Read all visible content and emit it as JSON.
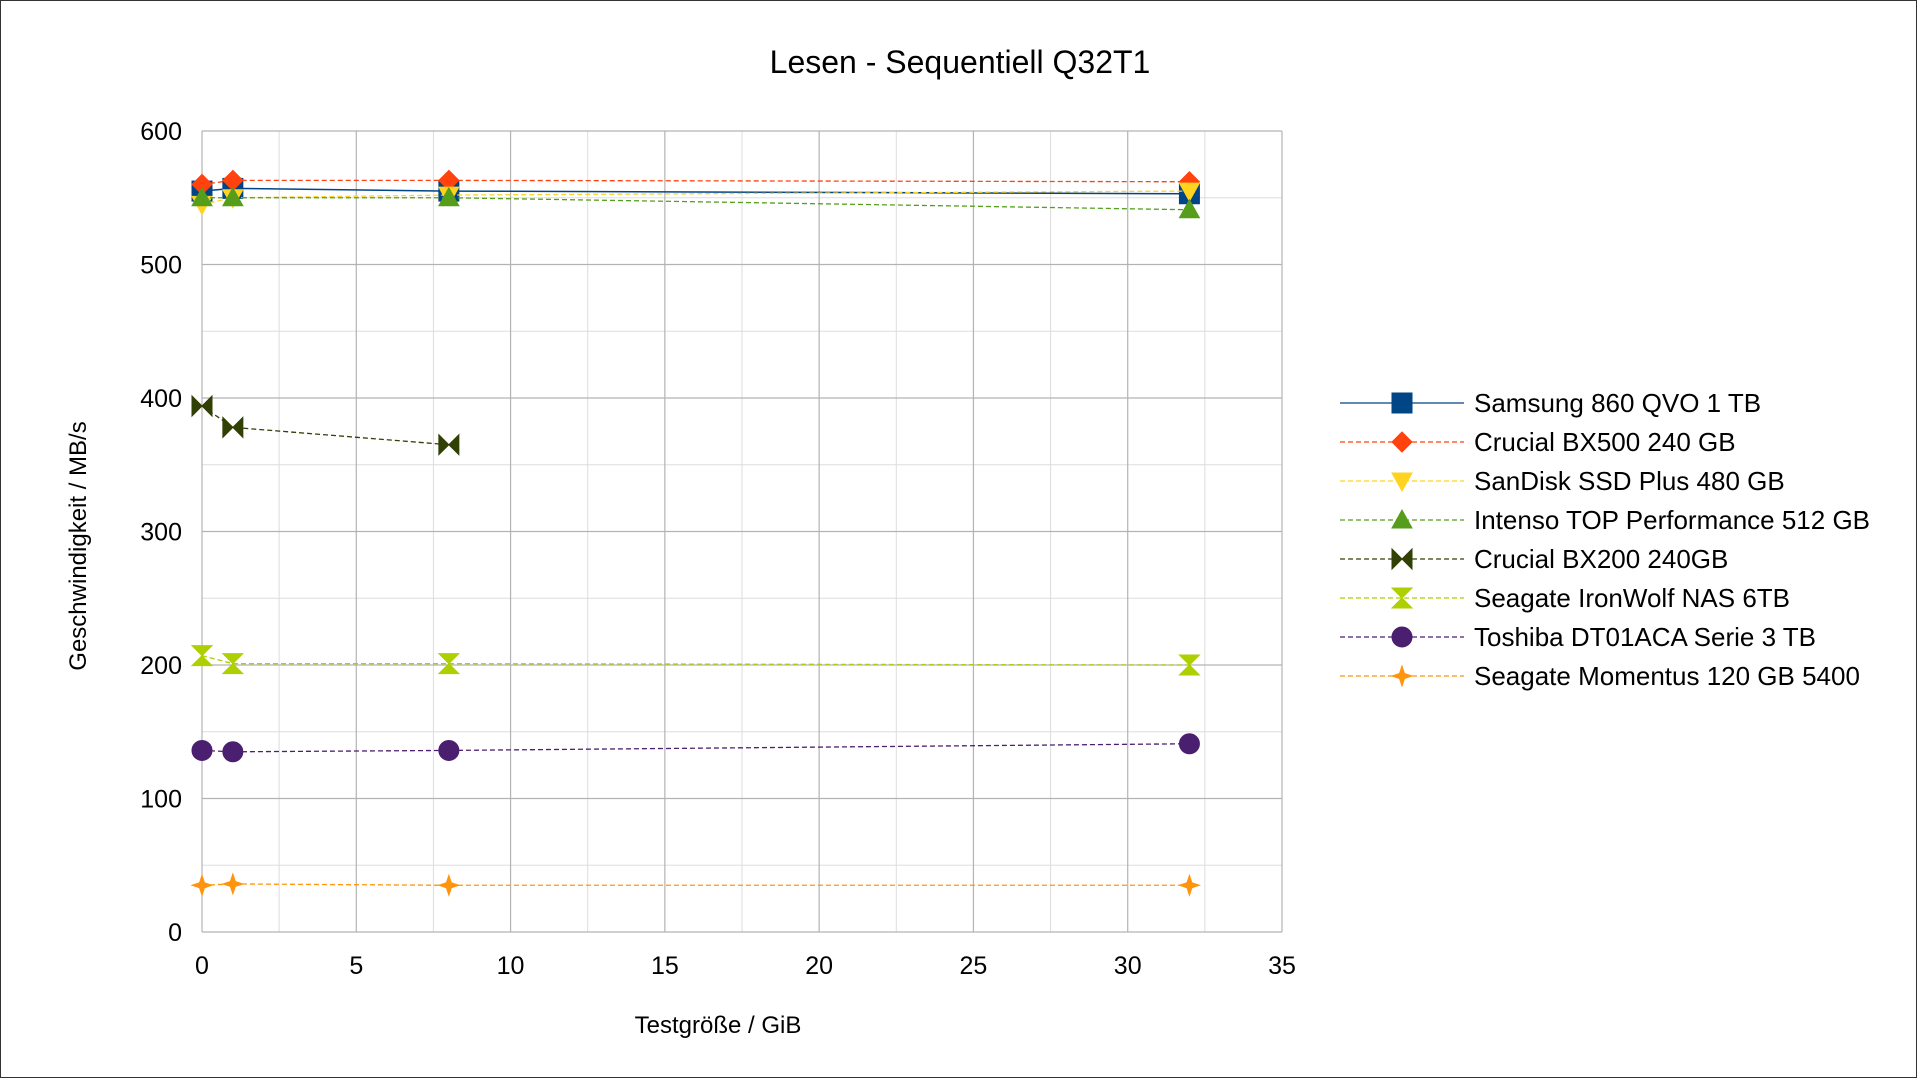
{
  "chart_data": {
    "type": "line",
    "title": "Lesen - Sequentiell Q32T1",
    "xlabel": "Testgröße / GiB",
    "ylabel": "Geschwindigkeit / MB/s",
    "xlim": [
      0,
      35
    ],
    "ylim": [
      0,
      600
    ],
    "xticks": [
      0,
      5,
      10,
      15,
      20,
      25,
      30,
      35
    ],
    "yticks": [
      0,
      100,
      200,
      300,
      400,
      500,
      600
    ],
    "grid": true,
    "legend_position": "right",
    "series": [
      {
        "name": "Samsung 860 QVO 1 TB",
        "color": "#004586",
        "marker": "square",
        "dash": "solid",
        "x": [
          0,
          1,
          8,
          32
        ],
        "y": [
          555,
          557,
          555,
          553
        ]
      },
      {
        "name": "Crucial BX500 240 GB",
        "color": "#ff420e",
        "marker": "diamond",
        "dash": "dashed",
        "x": [
          0,
          1,
          8,
          32
        ],
        "y": [
          560,
          563,
          563,
          562
        ]
      },
      {
        "name": "SanDisk SSD Plus 480 GB",
        "color": "#ffd320",
        "marker": "triangle-down",
        "dash": "dashed",
        "x": [
          0,
          1,
          8,
          32
        ],
        "y": [
          545,
          550,
          552,
          555
        ]
      },
      {
        "name": "Intenso  TOP Performance 512 GB",
        "color": "#579d1c",
        "marker": "triangle-up",
        "dash": "dashed",
        "x": [
          0,
          1,
          8,
          32
        ],
        "y": [
          550,
          550,
          550,
          541
        ]
      },
      {
        "name": "Crucial BX200 240GB",
        "color": "#314004",
        "marker": "bowtie",
        "dash": "dashed",
        "x": [
          0,
          1,
          8
        ],
        "y": [
          394,
          378,
          365
        ]
      },
      {
        "name": "Seagate IronWolf NAS 6TB",
        "color": "#aecf00",
        "marker": "hourglass",
        "dash": "dashed",
        "x": [
          0,
          1,
          8,
          32
        ],
        "y": [
          207,
          201,
          201,
          200
        ]
      },
      {
        "name": "Toshiba DT01ACA Serie 3 TB",
        "color": "#4b1f6f",
        "marker": "circle",
        "dash": "dashed",
        "x": [
          0,
          1,
          8,
          32
        ],
        "y": [
          136,
          135,
          136,
          141
        ]
      },
      {
        "name": "Seagate Momentus 120 GB 5400",
        "color": "#ff950e",
        "marker": "star",
        "dash": "dashed",
        "x": [
          0,
          1,
          8,
          32
        ],
        "y": [
          35,
          36,
          35,
          35
        ]
      }
    ]
  }
}
